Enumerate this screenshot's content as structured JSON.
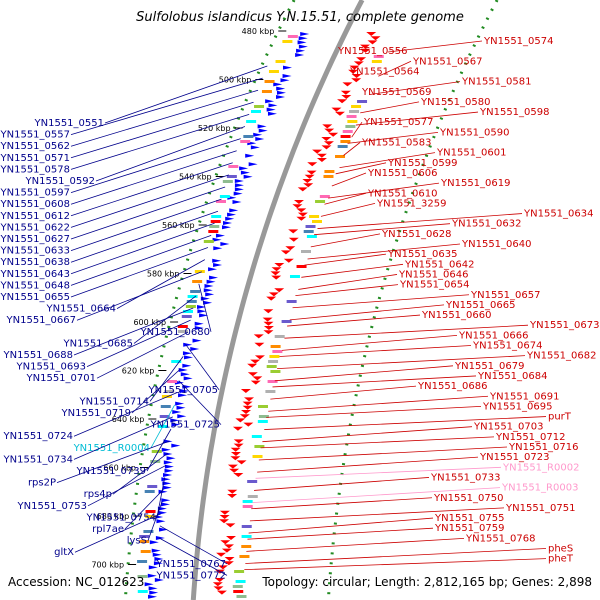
{
  "title": "Sulfolobus islandicus Y.N.15.51, complete genome",
  "footer": {
    "accession": "Accession: NC_012623",
    "summary": "Topology: circular; Length: 2,812,165 bp; Genes: 2,898"
  },
  "colors": {
    "forward_strand": "#ff0000",
    "reverse_strand": "#0000ff",
    "rna": "#ff99cc",
    "backbone": "#999999",
    "ruler_dots": "#228b22",
    "left_label": "#00008b",
    "right_label": "#cc0000"
  },
  "ticks": [
    "480 kbp",
    "500 kbp",
    "520 kbp",
    "540 kbp",
    "560 kbp",
    "580 kbp",
    "600 kbp",
    "620 kbp",
    "640 kbp",
    "660 kbp",
    "680 kbp",
    "700 kbp"
  ],
  "left_labels": [
    "YN1551_0551",
    "YN1551_0557",
    "YN1551_0562",
    "YN1551_0571",
    "YN1551_0578",
    "YN1551_0592",
    "YN1551_0597",
    "YN1551_0608",
    "YN1551_0612",
    "YN1551_0622",
    "YN1551_0627",
    "YN1551_0633",
    "YN1551_0638",
    "YN1551_0643",
    "YN1551_0648",
    "YN1551_0655",
    "YN1551_0664",
    "YN1551_0667",
    "YN1551_0680",
    "YN1551_0685",
    "YN1551_0688",
    "YN1551_0693",
    "YN1551_0701",
    "YN1551_0705",
    "YN1551_0714",
    "YN1551_0719",
    "YN1551_0725",
    "YN1551_0724",
    "YN1551_R0004",
    "YN1551_0734",
    "YN1551_0739",
    "rps2P",
    "rps4p",
    "YN1551_0753",
    "YN1551_0754",
    "rpl7ae",
    "lysS",
    "gltX",
    "YN1551_0767",
    "YN1551_0772"
  ],
  "right_labels": [
    "YN1551_0574",
    "YN1551_0556",
    "YN1551_0567",
    "YN1551_0564",
    "YN1551_0581",
    "YN1551_0569",
    "YN1551_0580",
    "YN1551_0598",
    "YN1551_0577",
    "YN1551_0590",
    "YN1551_0583",
    "YN1551_0601",
    "YN1551_0599",
    "YN1551_0606",
    "YN1551_0619",
    "YN1551_0610",
    "YN1551_3259",
    "YN1551_0634",
    "YN1551_0632",
    "YN1551_0628",
    "YN1551_0640",
    "YN1551_0635",
    "YN1551_0642",
    "YN1551_0646",
    "YN1551_0654",
    "YN1551_0657",
    "YN1551_0665",
    "YN1551_0660",
    "YN1551_0673",
    "YN1551_0666",
    "YN1551_0674",
    "YN1551_0682",
    "YN1551_0679",
    "YN1551_0684",
    "YN1551_0686",
    "YN1551_0691",
    "YN1551_0695",
    "purT",
    "YN1551_0703",
    "YN1551_0712",
    "YN1551_0716",
    "YN1551_0723",
    "YN1551_R0002",
    "YN1551_0733",
    "YN1551_R0003",
    "YN1551_0750",
    "YN1551_0751",
    "YN1551_0755",
    "YN1551_0759",
    "YN1551_0768",
    "pheS",
    "pheT"
  ]
}
